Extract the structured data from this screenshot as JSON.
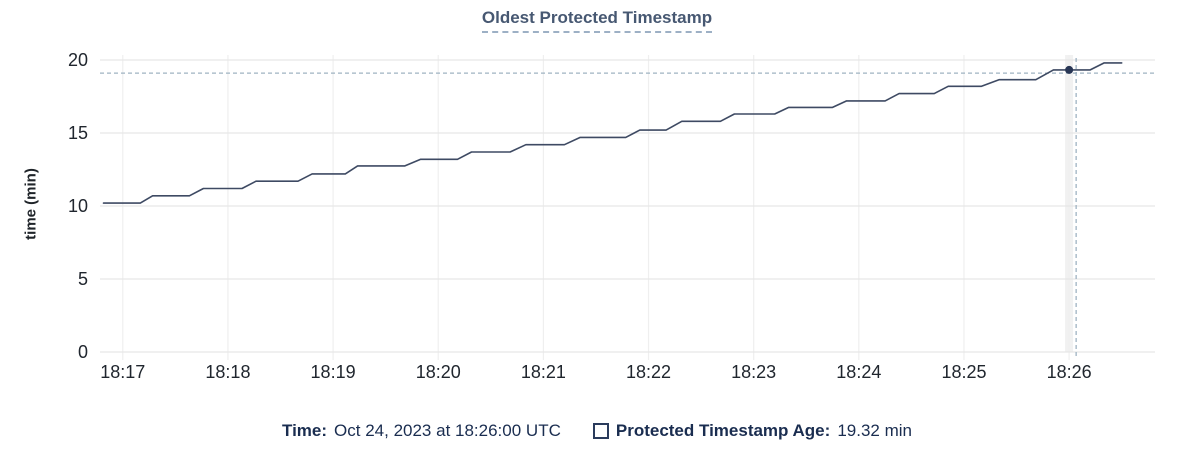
{
  "chart_data": {
    "type": "line",
    "title": "Oldest Protected Timestamp",
    "xlabel": "",
    "ylabel": "time (min)",
    "ylim": [
      0,
      20
    ],
    "y_ticks": [
      0,
      5,
      10,
      15,
      20
    ],
    "x_ticks": [
      "18:17",
      "18:18",
      "18:19",
      "18:20",
      "18:21",
      "18:22",
      "18:23",
      "18:24",
      "18:25",
      "18:26"
    ],
    "x_domain": [
      "18:16:47",
      "18:26:49"
    ],
    "grid": true,
    "legend_position": "bottom",
    "series": [
      {
        "name": "Protected Timestamp Age",
        "color": "#3e4a63",
        "points": [
          [
            "18:16:49",
            10.2
          ],
          [
            "18:17:10",
            10.2
          ],
          [
            "18:17:17",
            10.7
          ],
          [
            "18:17:38",
            10.7
          ],
          [
            "18:17:46",
            11.2
          ],
          [
            "18:18:08",
            11.2
          ],
          [
            "18:18:16",
            11.7
          ],
          [
            "18:18:40",
            11.7
          ],
          [
            "18:18:48",
            12.2
          ],
          [
            "18:19:07",
            12.2
          ],
          [
            "18:19:14",
            12.75
          ],
          [
            "18:19:41",
            12.75
          ],
          [
            "18:19:50",
            13.2
          ],
          [
            "18:20:11",
            13.2
          ],
          [
            "18:20:19",
            13.7
          ],
          [
            "18:20:41",
            13.7
          ],
          [
            "18:20:50",
            14.2
          ],
          [
            "18:21:12",
            14.2
          ],
          [
            "18:21:21",
            14.7
          ],
          [
            "18:21:47",
            14.7
          ],
          [
            "18:21:55",
            15.2
          ],
          [
            "18:22:10",
            15.2
          ],
          [
            "18:22:19",
            15.8
          ],
          [
            "18:22:41",
            15.8
          ],
          [
            "18:22:49",
            16.3
          ],
          [
            "18:23:12",
            16.3
          ],
          [
            "18:23:20",
            16.75
          ],
          [
            "18:23:45",
            16.75
          ],
          [
            "18:23:53",
            17.2
          ],
          [
            "18:24:15",
            17.2
          ],
          [
            "18:24:23",
            17.7
          ],
          [
            "18:24:43",
            17.7
          ],
          [
            "18:24:51",
            18.2
          ],
          [
            "18:25:10",
            18.2
          ],
          [
            "18:25:20",
            18.65
          ],
          [
            "18:25:41",
            18.65
          ],
          [
            "18:25:51",
            19.32
          ],
          [
            "18:26:12",
            19.32
          ],
          [
            "18:26:20",
            19.8
          ],
          [
            "18:26:30",
            19.8
          ]
        ]
      }
    ],
    "hover": {
      "point_time": "18:26:00",
      "point_value": 19.32,
      "crosshair_x_time": "18:26:04",
      "crosshair_y_value": 19.1
    }
  },
  "footer": {
    "time_label": "Time:",
    "time_value": "Oct 24, 2023 at 18:26:00 UTC",
    "series_label": "Protected Timestamp Age:",
    "series_value": "19.32 min"
  },
  "colors": {
    "line": "#3e4a63",
    "dot": "#283655",
    "crosshair": "#9fb3c2",
    "grid_horizontal": "#e7e7e7",
    "grid_vertical": "#efefef",
    "hover_band": "#f1f1f1",
    "tick_label": "#20262e",
    "title": "#475872",
    "legend_text": "#1a2d50"
  }
}
